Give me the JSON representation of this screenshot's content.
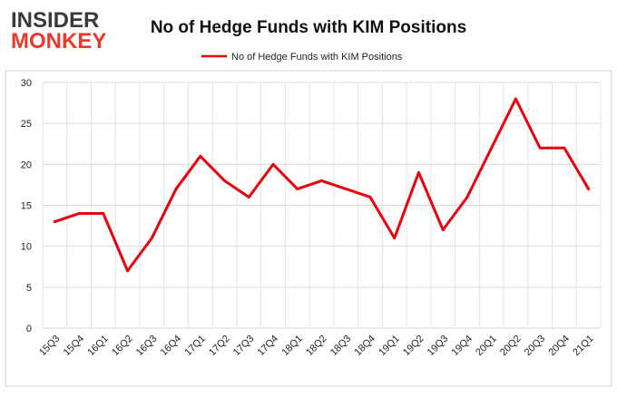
{
  "logo": {
    "line1": "INSIDER",
    "line2": "MONKEY",
    "color_dark": "#3a3a3a",
    "color_accent": "#e8392c"
  },
  "chart_data": {
    "type": "line",
    "title": "No of Hedge Funds with KIM Positions",
    "xlabel": "",
    "ylabel": "",
    "categories": [
      "15Q3",
      "15Q4",
      "16Q1",
      "16Q2",
      "16Q3",
      "16Q4",
      "17Q1",
      "17Q2",
      "17Q3",
      "17Q4",
      "18Q1",
      "18Q2",
      "18Q3",
      "18Q4",
      "19Q1",
      "19Q2",
      "19Q3",
      "19Q4",
      "20Q1",
      "20Q2",
      "20Q3",
      "20Q4",
      "21Q1"
    ],
    "series": [
      {
        "name": "No of Hedge Funds with KIM Positions",
        "color": "#e8000b",
        "values": [
          13,
          14,
          14,
          7,
          11,
          17,
          21,
          18,
          16,
          20,
          17,
          18,
          17,
          16,
          11,
          19,
          12,
          16,
          22,
          28,
          22,
          22,
          17
        ]
      }
    ],
    "ylim": [
      0,
      30
    ],
    "yticks": [
      0,
      5,
      10,
      15,
      20,
      25,
      30
    ],
    "grid": true,
    "legend_position": "top-center"
  }
}
